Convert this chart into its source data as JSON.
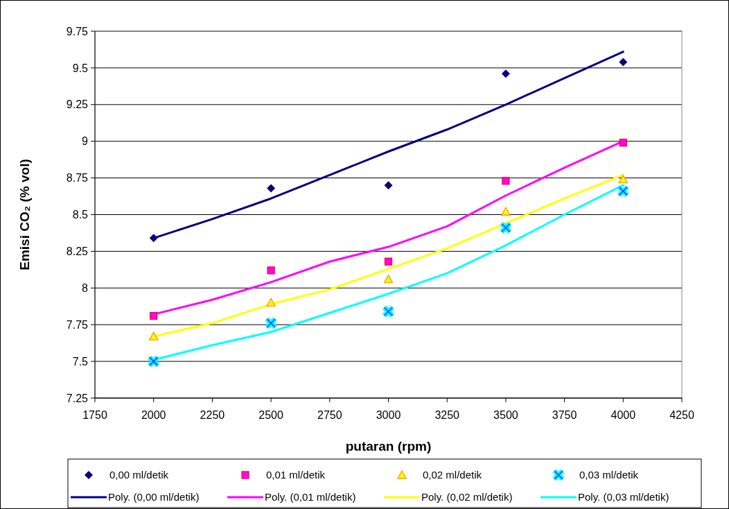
{
  "chart_data": {
    "type": "scatter",
    "xlabel": "putaran (rpm)",
    "ylabel": "Emisi  CO₂ (% vol)",
    "xlim": [
      1750,
      4250
    ],
    "xticks": [
      1750,
      2000,
      2250,
      2500,
      2750,
      3000,
      3250,
      3500,
      3750,
      4000,
      4250
    ],
    "ylim": [
      7.25,
      9.75
    ],
    "yticks": [
      7.25,
      7.5,
      7.75,
      8,
      8.25,
      8.5,
      8.75,
      9,
      9.25,
      9.5,
      9.75
    ],
    "grid": "y",
    "legend": "bottom",
    "series": [
      {
        "name": "0,00 ml/detik",
        "marker": "diamond",
        "color": "#000080",
        "x": [
          2000,
          2500,
          3000,
          3500,
          4000
        ],
        "values": [
          8.34,
          8.68,
          8.7,
          9.46,
          9.54
        ]
      },
      {
        "name": "0,01 ml/detik",
        "marker": "square",
        "color": "#ff00ff",
        "x": [
          2000,
          2500,
          3000,
          3500,
          4000
        ],
        "values": [
          7.81,
          8.12,
          8.18,
          8.73,
          8.99
        ]
      },
      {
        "name": "0,02 ml/detik",
        "marker": "triangle",
        "color": "#ffff00",
        "x": [
          2000,
          2500,
          3000,
          3500,
          4000
        ],
        "values": [
          7.67,
          7.9,
          8.06,
          8.52,
          8.74
        ]
      },
      {
        "name": "0,03 ml/detik",
        "marker": "cross",
        "color": "#00ffff",
        "x": [
          2000,
          2500,
          3000,
          3500,
          4000
        ],
        "values": [
          7.5,
          7.76,
          7.84,
          8.41,
          8.66
        ]
      },
      {
        "name": "Poly. (0,00 ml/detik)",
        "type": "line",
        "color": "#000080",
        "x": [
          2000,
          2250,
          2500,
          2750,
          3000,
          3250,
          3500,
          3750,
          4000
        ],
        "values": [
          8.34,
          8.47,
          8.61,
          8.77,
          8.93,
          9.08,
          9.25,
          9.43,
          9.61
        ]
      },
      {
        "name": "Poly. (0,01 ml/detik)",
        "type": "line",
        "color": "#ff00ff",
        "x": [
          2000,
          2250,
          2500,
          2750,
          3000,
          3250,
          3500,
          3750,
          4000
        ],
        "values": [
          7.82,
          7.92,
          8.04,
          8.18,
          8.28,
          8.42,
          8.63,
          8.82,
          9.0
        ]
      },
      {
        "name": "Poly. (0,02 ml/detik)",
        "type": "line",
        "color": "#ffff00",
        "x": [
          2000,
          2250,
          2500,
          2750,
          3000,
          3250,
          3500,
          3750,
          4000
        ],
        "values": [
          7.67,
          7.76,
          7.89,
          7.99,
          8.13,
          8.27,
          8.44,
          8.61,
          8.77
        ]
      },
      {
        "name": "Poly. (0,03 ml/detik)",
        "type": "line",
        "color": "#00ffff",
        "x": [
          2000,
          2250,
          2500,
          2750,
          3000,
          3250,
          3500,
          3750,
          4000
        ],
        "values": [
          7.51,
          7.61,
          7.7,
          7.83,
          7.96,
          8.1,
          8.29,
          8.5,
          8.7
        ]
      }
    ]
  }
}
